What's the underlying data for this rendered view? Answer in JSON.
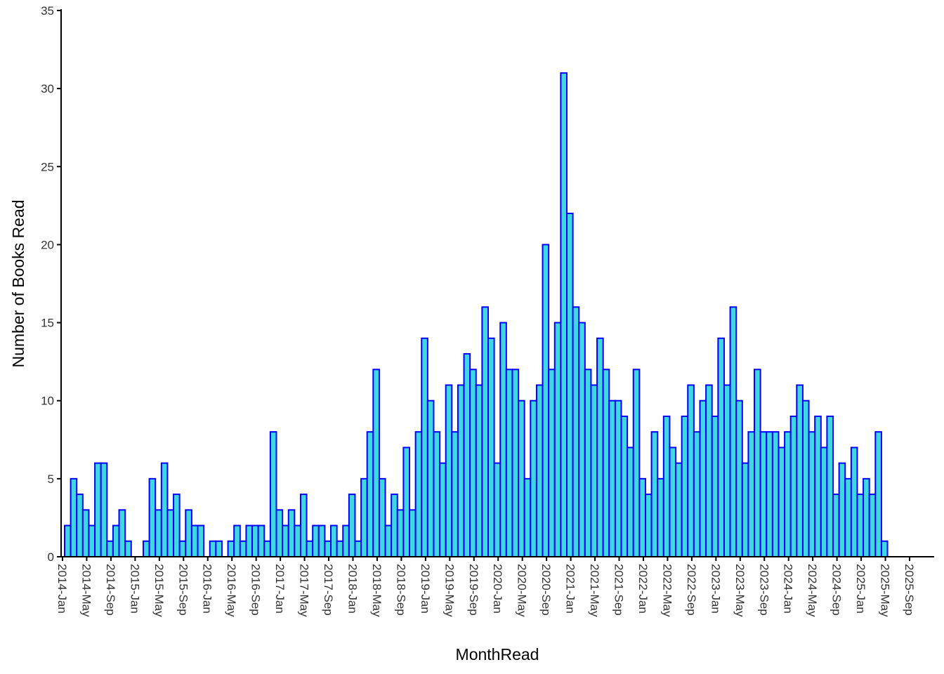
{
  "chart_data": {
    "type": "bar",
    "x_label": "MonthRead",
    "y_label": "Number of Books Read",
    "categories": [
      "2014-Jan",
      "2014-Feb",
      "2014-Mar",
      "2014-Apr",
      "2014-May",
      "2014-Jun",
      "2014-Jul",
      "2014-Aug",
      "2014-Sep",
      "2014-Oct",
      "2014-Nov",
      "2014-Dec",
      "2015-Jan",
      "2015-Feb",
      "2015-Mar",
      "2015-Apr",
      "2015-May",
      "2015-Jun",
      "2015-Jul",
      "2015-Aug",
      "2015-Sep",
      "2015-Oct",
      "2015-Nov",
      "2015-Dec",
      "2016-Jan",
      "2016-Feb",
      "2016-Mar",
      "2016-Apr",
      "2016-May",
      "2016-Jun",
      "2016-Jul",
      "2016-Aug",
      "2016-Sep",
      "2016-Oct",
      "2016-Nov",
      "2016-Dec",
      "2017-Jan",
      "2017-Feb",
      "2017-Mar",
      "2017-Apr",
      "2017-May",
      "2017-Jun",
      "2017-Jul",
      "2017-Aug",
      "2017-Sep",
      "2017-Oct",
      "2017-Nov",
      "2017-Dec",
      "2018-Jan",
      "2018-Feb",
      "2018-Mar",
      "2018-Apr",
      "2018-May",
      "2018-Jun",
      "2018-Jul",
      "2018-Aug",
      "2018-Sep",
      "2018-Oct",
      "2018-Nov",
      "2018-Dec",
      "2019-Jan",
      "2019-Feb",
      "2019-Mar",
      "2019-Apr",
      "2019-May",
      "2019-Jun",
      "2019-Jul",
      "2019-Aug",
      "2019-Sep",
      "2019-Oct",
      "2019-Nov",
      "2019-Dec",
      "2020-Jan",
      "2020-Feb",
      "2020-Mar",
      "2020-Apr",
      "2020-May",
      "2020-Jun",
      "2020-Jul",
      "2020-Aug",
      "2020-Sep",
      "2020-Oct",
      "2020-Nov",
      "2020-Dec",
      "2021-Jan",
      "2021-Feb",
      "2021-Mar",
      "2021-Apr",
      "2021-May",
      "2021-Jun",
      "2021-Jul",
      "2021-Aug",
      "2021-Sep",
      "2021-Oct",
      "2021-Nov",
      "2021-Dec",
      "2022-Jan",
      "2022-Feb",
      "2022-Mar",
      "2022-Apr",
      "2022-May",
      "2022-Jun",
      "2022-Jul",
      "2022-Aug",
      "2022-Sep",
      "2022-Oct",
      "2022-Nov",
      "2022-Dec",
      "2023-Jan",
      "2023-Feb",
      "2023-Mar",
      "2023-Apr",
      "2023-May",
      "2023-Jun",
      "2023-Jul",
      "2023-Aug",
      "2023-Sep",
      "2023-Oct",
      "2023-Nov",
      "2023-Dec",
      "2024-Jan",
      "2024-Feb",
      "2024-Mar",
      "2024-Apr",
      "2024-May",
      "2024-Jun",
      "2024-Jul",
      "2024-Aug",
      "2024-Sep",
      "2024-Oct",
      "2024-Nov",
      "2024-Dec",
      "2025-Jan",
      "2025-Feb",
      "2025-Mar",
      "2025-Apr"
    ],
    "values": [
      2,
      5,
      4,
      3,
      2,
      6,
      6,
      1,
      2,
      3,
      1,
      0,
      0,
      1,
      5,
      3,
      6,
      3,
      4,
      1,
      3,
      2,
      2,
      0,
      1,
      1,
      0,
      1,
      2,
      1,
      2,
      2,
      2,
      1,
      8,
      3,
      2,
      3,
      2,
      4,
      1,
      2,
      2,
      1,
      2,
      1,
      2,
      4,
      1,
      5,
      8,
      12,
      5,
      2,
      4,
      3,
      7,
      3,
      8,
      14,
      10,
      8,
      6,
      11,
      8,
      11,
      13,
      12,
      11,
      16,
      14,
      6,
      15,
      12,
      12,
      10,
      5,
      10,
      11,
      20,
      12,
      15,
      31,
      22,
      16,
      15,
      12,
      11,
      14,
      12,
      10,
      10,
      9,
      7,
      12,
      5,
      4,
      8,
      5,
      9,
      7,
      6,
      9,
      11,
      8,
      10,
      11,
      9,
      14,
      11,
      16,
      10,
      6,
      8,
      12,
      8,
      8,
      8,
      7,
      8,
      9,
      11,
      10,
      8,
      9,
      7,
      9,
      4,
      6,
      5,
      7,
      4,
      5,
      4,
      8,
      1
    ],
    "color": "#40d8e0",
    "edge_color": "#0000ff",
    "xticks": [
      "2014-Jan",
      "2014-May",
      "2014-Sep",
      "2015-Jan",
      "2015-May",
      "2015-Sep",
      "2016-Jan",
      "2016-May",
      "2016-Sep",
      "2017-Jan",
      "2017-May",
      "2017-Sep",
      "2018-Jan",
      "2018-May",
      "2018-Sep",
      "2019-Jan",
      "2019-May",
      "2019-Sep",
      "2020-Jan",
      "2020-May",
      "2020-Sep",
      "2021-Jan",
      "2021-May",
      "2021-Sep",
      "2022-Jan",
      "2022-May",
      "2022-Sep",
      "2023-Jan",
      "2023-May",
      "2023-Sep",
      "2024-Jan",
      "2024-May",
      "2024-Sep",
      "2025-Jan",
      "2025-May",
      "2025-Sep"
    ],
    "ylim": [
      0,
      35
    ],
    "yticks": [
      0,
      5,
      10,
      15,
      20,
      25,
      30,
      35
    ],
    "grid": false
  }
}
